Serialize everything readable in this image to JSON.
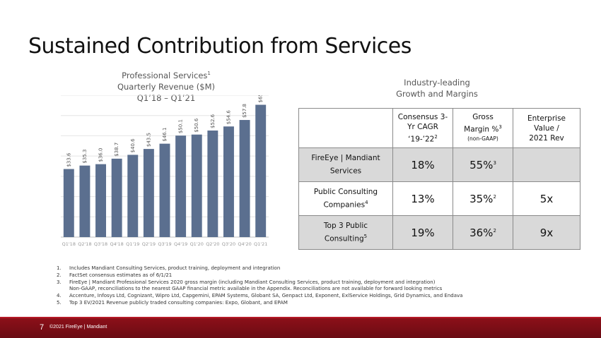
{
  "slide": {
    "title": "Sustained Contribution from Services",
    "page_number": "7",
    "copyright": "©2021 FireEye | Mandiant"
  },
  "chart_title": {
    "line1": "Professional Services",
    "line1_sup": "1",
    "line2": "Quarterly Revenue ($M)",
    "line3": "Q1’18 – Q1’21"
  },
  "chart_data": {
    "type": "bar",
    "categories": [
      "Q1'18",
      "Q2'18",
      "Q3'18",
      "Q4'18",
      "Q1'19",
      "Q2'19",
      "Q3'19",
      "Q4'19",
      "Q1'20",
      "Q2'20",
      "Q3'20",
      "Q4'20",
      "Q1'21"
    ],
    "values": [
      33.6,
      35.3,
      36.0,
      38.7,
      40.6,
      43.5,
      46.1,
      50.1,
      50.6,
      52.6,
      54.6,
      57.8,
      65.3
    ],
    "labels": [
      "$33.6",
      "$35.3",
      "$36.0",
      "$38.7",
      "$40.6",
      "$43.5",
      "$46.1",
      "$50.1",
      "$50.6",
      "$52.6",
      "$54.6",
      "$57.8",
      "$65.3"
    ],
    "ylim": [
      0,
      70
    ],
    "grid": true,
    "bar_color": "#5b6f8f"
  },
  "industry_title": {
    "line1": "Industry-leading",
    "line2": "Growth and Margins"
  },
  "table": {
    "headers": [
      {
        "l1": "Consensus 3-",
        "l2": "Yr CAGR",
        "l3": "‘19-’22",
        "sup": "2"
      },
      {
        "l1": "Gross",
        "l2": "Margin %",
        "sup": "3",
        "l3": "(non-GAAP)"
      },
      {
        "l1": "Enterprise",
        "l2": "Value /",
        "l3": "2021 Rev"
      }
    ],
    "rows": [
      {
        "l1": "FireEye | Mandiant",
        "l2": "Services",
        "sup": "",
        "cagr": "18%",
        "margin": "55%",
        "margin_sup": "3",
        "ev": ""
      },
      {
        "l1": "Public Consulting",
        "l2": "Companies",
        "sup": "4",
        "cagr": "13%",
        "margin": "35%",
        "margin_sup": "2",
        "ev": "5x"
      },
      {
        "l1": "Top 3 Public",
        "l2": "Consulting",
        "sup": "5",
        "cagr": "19%",
        "margin": "36%",
        "margin_sup": "2",
        "ev": "9x"
      }
    ],
    "shade_color": "#d9d9d9"
  },
  "footnotes": [
    {
      "num": "1.",
      "text": "Includes Mandiant Consulting Services, product training, deployment and integration"
    },
    {
      "num": "2.",
      "text": "FactSet consensus estimates as of 6/1/21"
    },
    {
      "num": "3.",
      "text": "FireEye | Mandiant Professional Services 2020 gross margin (including Mandiant Consulting Services, product training, deployment and integration)"
    },
    {
      "num": "",
      "text": "Non-GAAP, reconciliations to the nearest GAAP financial metric available in the Appendix. Reconciliations are not available for forward looking metrics"
    },
    {
      "num": "4.",
      "text": "Accenture, Infosys Ltd, Cognizant, Wipro Ltd, Capgemini, EPAM Systems, Globant SA, Genpact Ltd, Exponent, ExlService Holdings, Grid Dynamics, and Endava"
    },
    {
      "num": "5.",
      "text": "Top 3 EV/2021 Revenue publicly traded consulting companies: Expo, Globant, and EPAM"
    }
  ],
  "colors": {
    "footer": "#7a0d16",
    "bar": "#5b6f8f"
  }
}
